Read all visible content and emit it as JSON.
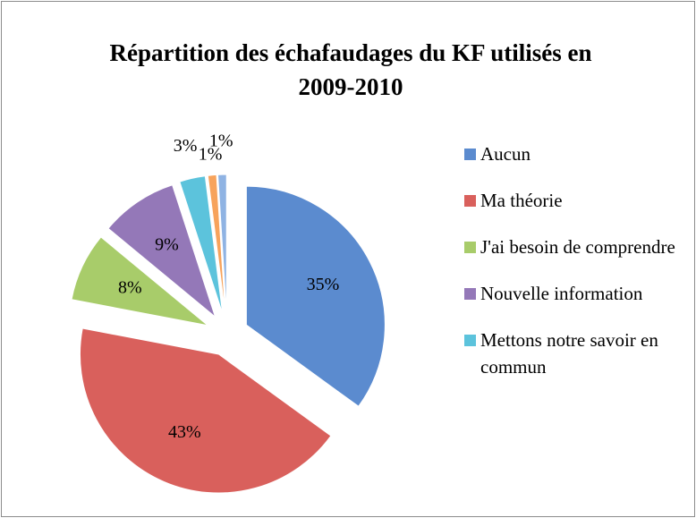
{
  "chart_data": {
    "type": "pie",
    "title": "Répartition des échafaudages du KF utilisés en 2009-2010",
    "categories": [
      "Aucun",
      "Ma théorie",
      "J'ai besoin de comprendre",
      "Nouvelle information",
      "Mettons notre savoir en commun",
      null,
      null
    ],
    "values": [
      35,
      43,
      8,
      9,
      3,
      1,
      1
    ],
    "value_labels": [
      "35%",
      "43%",
      "8%",
      "9%",
      "3%",
      "1%",
      "1%"
    ],
    "colors": [
      "#5b8bcf",
      "#d9605c",
      "#a8cc6a",
      "#9478b8",
      "#5cc3dc",
      "#f7a35c",
      "#8fb3e3"
    ],
    "exploded": true,
    "legend": "right"
  }
}
